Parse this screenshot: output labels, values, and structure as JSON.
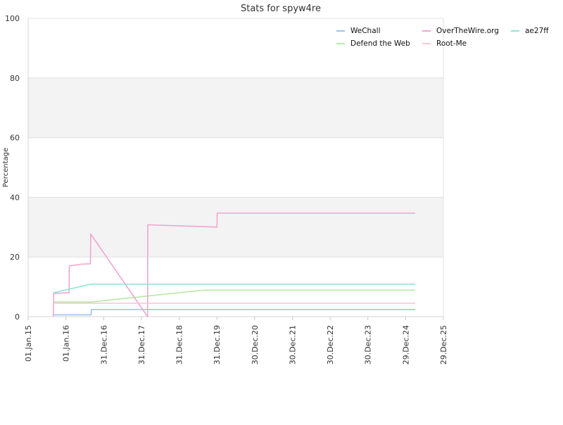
{
  "chart_data": {
    "type": "line",
    "title": "Stats for spyw4re",
    "xlabel": "",
    "ylabel": "Percentage",
    "ylim": [
      0,
      100
    ],
    "yticks": [
      0,
      20,
      40,
      60,
      80,
      100
    ],
    "xlim": [
      "2015-01-01",
      "2025-12-29"
    ],
    "xticks": [
      {
        "date": "2015-01-01",
        "label": "01.Jan.15"
      },
      {
        "date": "2016-01-01",
        "label": "01.Jan.16"
      },
      {
        "date": "2016-12-31",
        "label": "31.Dec.16"
      },
      {
        "date": "2017-12-31",
        "label": "31.Dec.17"
      },
      {
        "date": "2018-12-31",
        "label": "31.Dec.18"
      },
      {
        "date": "2019-12-31",
        "label": "31.Dec.19"
      },
      {
        "date": "2020-12-30",
        "label": "30.Dec.20"
      },
      {
        "date": "2021-12-30",
        "label": "30.Dec.21"
      },
      {
        "date": "2022-12-30",
        "label": "30.Dec.22"
      },
      {
        "date": "2023-12-30",
        "label": "30.Dec.23"
      },
      {
        "date": "2024-12-29",
        "label": "29.Dec.24"
      },
      {
        "date": "2025-12-29",
        "label": "29.Dec.25"
      }
    ],
    "grid": true,
    "banded_background": true,
    "legend_position": "top-right",
    "series": [
      {
        "name": "WeChall",
        "color": "#9fc3ee",
        "points": [
          [
            "2015-09-01",
            0.3
          ],
          [
            "2015-09-10",
            0.6
          ],
          [
            "2016-09-01",
            0.6
          ],
          [
            "2016-09-03",
            2.4
          ],
          [
            "2025-04-01",
            2.4
          ]
        ]
      },
      {
        "name": "Defend the Web",
        "color": "#b6eaa6",
        "points": [
          [
            "2015-09-01",
            4.9
          ],
          [
            "2016-09-01",
            4.9
          ],
          [
            "2019-09-01",
            8.9
          ],
          [
            "2025-04-01",
            8.9
          ]
        ]
      },
      {
        "name": "OverTheWire.org",
        "color": "#f0a6cf",
        "points": [
          [
            "2015-09-01",
            0
          ],
          [
            "2015-09-05",
            7.8
          ],
          [
            "2016-02-01",
            8.0
          ],
          [
            "2016-02-03",
            17.0
          ],
          [
            "2016-06-01",
            17.6
          ],
          [
            "2016-08-25",
            17.7
          ],
          [
            "2016-08-28",
            27.7
          ],
          [
            "2018-03-01",
            0
          ],
          [
            "2018-03-03",
            30.8
          ],
          [
            "2018-08-01",
            30.6
          ],
          [
            "2019-08-01",
            30.2
          ],
          [
            "2020-01-01",
            30.0
          ],
          [
            "2020-01-03",
            34.7
          ],
          [
            "2025-04-01",
            34.7
          ]
        ]
      },
      {
        "name": "Root-Me",
        "color": "#f6c9d4",
        "points": [
          [
            "2015-09-01",
            4.5
          ],
          [
            "2025-04-01",
            4.5
          ]
        ]
      },
      {
        "name": "ae27ff",
        "color": "#93e6d6",
        "points": [
          [
            "2015-09-01",
            8.0
          ],
          [
            "2016-09-01",
            10.9
          ],
          [
            "2025-04-01",
            10.9
          ]
        ]
      }
    ]
  }
}
